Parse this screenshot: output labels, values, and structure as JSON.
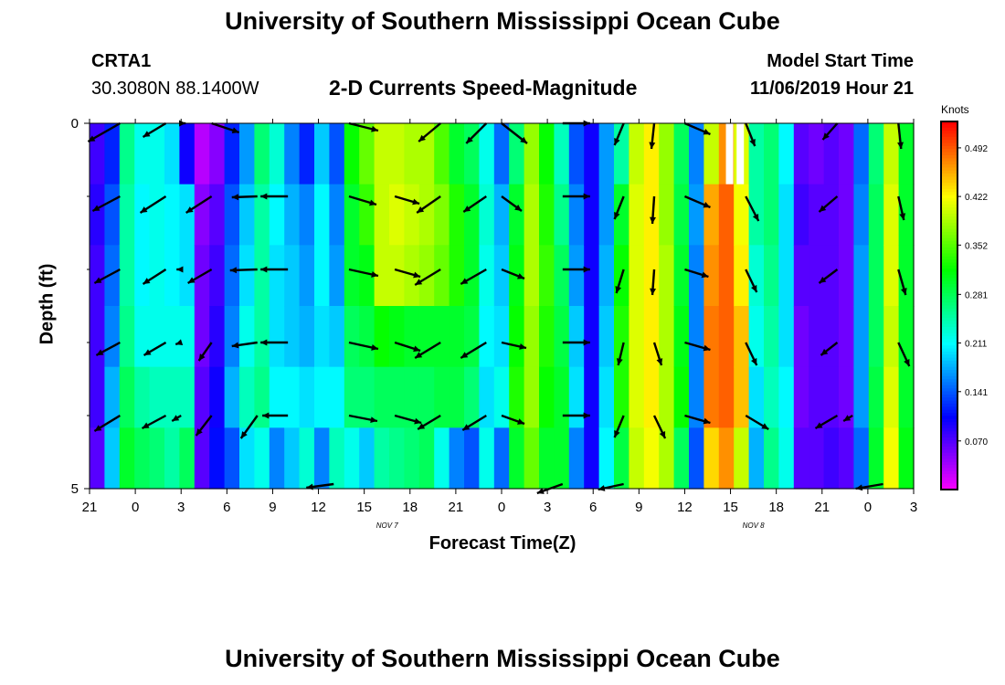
{
  "header": {
    "title": "University of Southern Mississippi Ocean Cube",
    "station_id": "CRTA1",
    "station_coords": "30.3080N 88.1400W",
    "chart_title": "2-D Currents Speed-Magnitude",
    "model_label": "Model Start Time",
    "model_time": "11/06/2019 Hour 21"
  },
  "footer": {
    "title": "University of Southern Mississippi Ocean Cube"
  },
  "chart_data": {
    "type": "heatmap",
    "xlabel": "Forecast Time(Z)",
    "ylabel": "Depth (ft)",
    "units": "Knots",
    "x_ticks": [
      "21",
      "0",
      "3",
      "6",
      "9",
      "12",
      "15",
      "18",
      "21",
      "0",
      "3",
      "6",
      "9",
      "12",
      "15",
      "18",
      "21",
      "0",
      "3"
    ],
    "date_labels": [
      {
        "text": "NOV 7",
        "tick_index": 6.5
      },
      {
        "text": "NOV 8",
        "tick_index": 14.5
      }
    ],
    "y_ticks": [
      "0",
      "5"
    ],
    "ylim": [
      0,
      5
    ],
    "n_hours": 54,
    "colorbar_ticks": [
      "0.492",
      "0.422",
      "0.352",
      "0.281",
      "0.211",
      "0.141",
      "0.070"
    ],
    "colorbar_range": [
      0.0,
      0.53
    ],
    "columns": [
      [
        0.08,
        0.09,
        0.08,
        0.08,
        0.08,
        0.07
      ],
      [
        0.12,
        0.14,
        0.15,
        0.16,
        0.18,
        0.19
      ],
      [
        0.26,
        0.25,
        0.25,
        0.26,
        0.28,
        0.3
      ],
      [
        0.22,
        0.21,
        0.21,
        0.22,
        0.25,
        0.28
      ],
      [
        0.22,
        0.22,
        0.22,
        0.22,
        0.24,
        0.27
      ],
      [
        0.2,
        0.21,
        0.21,
        0.22,
        0.24,
        0.25
      ],
      [
        0.1,
        0.2,
        0.2,
        0.22,
        0.24,
        0.28
      ],
      [
        0.03,
        0.05,
        0.06,
        0.06,
        0.07,
        0.07
      ],
      [
        0.05,
        0.07,
        0.08,
        0.09,
        0.1,
        0.11
      ],
      [
        0.12,
        0.14,
        0.15,
        0.16,
        0.18,
        0.14
      ],
      [
        0.17,
        0.19,
        0.2,
        0.22,
        0.24,
        0.2
      ],
      [
        0.27,
        0.25,
        0.25,
        0.25,
        0.26,
        0.22
      ],
      [
        0.23,
        0.21,
        0.2,
        0.2,
        0.21,
        0.16
      ],
      [
        0.16,
        0.18,
        0.19,
        0.19,
        0.21,
        0.19
      ],
      [
        0.12,
        0.16,
        0.17,
        0.18,
        0.2,
        0.23
      ],
      [
        0.19,
        0.21,
        0.21,
        0.2,
        0.21,
        0.16
      ],
      [
        0.14,
        0.16,
        0.17,
        0.19,
        0.21,
        0.24
      ],
      [
        0.32,
        0.3,
        0.3,
        0.28,
        0.27,
        0.22
      ],
      [
        0.36,
        0.34,
        0.31,
        0.29,
        0.27,
        0.19
      ],
      [
        0.4,
        0.4,
        0.4,
        0.32,
        0.28,
        0.25
      ],
      [
        0.4,
        0.41,
        0.4,
        0.31,
        0.28,
        0.26
      ],
      [
        0.39,
        0.4,
        0.39,
        0.3,
        0.28,
        0.27
      ],
      [
        0.39,
        0.39,
        0.38,
        0.3,
        0.28,
        0.28
      ],
      [
        0.35,
        0.37,
        0.36,
        0.3,
        0.29,
        0.22
      ],
      [
        0.3,
        0.33,
        0.33,
        0.3,
        0.29,
        0.16
      ],
      [
        0.28,
        0.3,
        0.3,
        0.29,
        0.27,
        0.14
      ],
      [
        0.22,
        0.23,
        0.22,
        0.21,
        0.2,
        0.22
      ],
      [
        0.15,
        0.18,
        0.19,
        0.2,
        0.22,
        0.15
      ],
      [
        0.27,
        0.3,
        0.31,
        0.32,
        0.33,
        0.3
      ],
      [
        0.38,
        0.39,
        0.39,
        0.38,
        0.38,
        0.36
      ],
      [
        0.32,
        0.33,
        0.34,
        0.33,
        0.32,
        0.3
      ],
      [
        0.24,
        0.26,
        0.28,
        0.29,
        0.3,
        0.3
      ],
      [
        0.14,
        0.16,
        0.17,
        0.19,
        0.2,
        0.16
      ],
      [
        0.1,
        0.1,
        0.1,
        0.1,
        0.1,
        0.1
      ],
      [
        0.17,
        0.17,
        0.18,
        0.19,
        0.2,
        0.21
      ],
      [
        0.25,
        0.3,
        0.32,
        0.33,
        0.33,
        0.29
      ],
      [
        0.4,
        0.41,
        0.41,
        0.41,
        0.41,
        0.4
      ],
      [
        0.43,
        0.43,
        0.43,
        0.43,
        0.43,
        0.42
      ],
      [
        0.38,
        0.38,
        0.39,
        0.39,
        0.39,
        0.39
      ],
      [
        0.28,
        0.29,
        0.3,
        0.31,
        0.32,
        0.28
      ],
      [
        0.16,
        0.17,
        0.16,
        0.16,
        0.16,
        0.14
      ],
      [
        0.4,
        0.46,
        0.47,
        0.48,
        0.48,
        0.44
      ],
      [
        0.47,
        0.49,
        0.49,
        0.49,
        0.49,
        0.47
      ],
      [
        0.41,
        0.42,
        0.43,
        0.45,
        0.45,
        0.4
      ],
      [
        0.25,
        0.25,
        0.23,
        0.22,
        0.2,
        0.18
      ],
      [
        0.27,
        0.27,
        0.26,
        0.25,
        0.24,
        0.26
      ],
      [
        0.21,
        0.2,
        0.2,
        0.2,
        0.21,
        0.22
      ],
      [
        0.07,
        0.08,
        0.07,
        0.06,
        0.06,
        0.07
      ],
      [
        0.06,
        0.07,
        0.07,
        0.07,
        0.07,
        0.07
      ],
      [
        0.07,
        0.07,
        0.07,
        0.07,
        0.07,
        0.08
      ],
      [
        0.06,
        0.06,
        0.06,
        0.06,
        0.06,
        0.07
      ],
      [
        0.15,
        0.16,
        0.17,
        0.17,
        0.17,
        0.15
      ],
      [
        0.27,
        0.28,
        0.28,
        0.28,
        0.29,
        0.3
      ],
      [
        0.4,
        0.41,
        0.41,
        0.4,
        0.41,
        0.42
      ],
      [
        0.3,
        0.3,
        0.3,
        0.3,
        0.3,
        0.31
      ]
    ],
    "no_data_cells": [
      [
        1,
        0
      ],
      [
        2,
        0
      ]
    ],
    "vectors": [
      {
        "h": 2,
        "d": [
          [
            -35,
            -20
          ],
          [
            -30,
            -16
          ],
          [
            -28,
            -15
          ],
          [
            -26,
            -14
          ],
          [
            -28,
            -17
          ]
        ]
      },
      {
        "h": 5,
        "d": [
          [
            -25,
            -15
          ],
          [
            -28,
            -18
          ],
          [
            -25,
            -16
          ],
          [
            -24,
            -14
          ],
          [
            -26,
            -14
          ]
        ]
      },
      {
        "h": 6,
        "d": [
          [
            5,
            0
          ],
          [
            0,
            0
          ],
          [
            -5,
            0
          ],
          [
            -6,
            -2
          ],
          [
            -10,
            -6
          ]
        ]
      },
      {
        "h": 8,
        "d": [
          [
            30,
            -10
          ],
          [
            -28,
            -18
          ],
          [
            -26,
            -15
          ],
          [
            -14,
            -20
          ],
          [
            -17,
            -22
          ]
        ]
      },
      {
        "h": 11,
        "d": [
          [
            0,
            0
          ],
          [
            -28,
            -1
          ],
          [
            -30,
            -1
          ],
          [
            -28,
            -4
          ],
          [
            -18,
            -25
          ]
        ]
      },
      {
        "h": 13,
        "d": [
          [
            0,
            0
          ],
          [
            -30,
            0
          ],
          [
            -30,
            0
          ],
          [
            -30,
            0
          ],
          [
            -28,
            0
          ]
        ]
      },
      {
        "h": 17,
        "d": [
          [
            32,
            -8
          ],
          [
            30,
            -9
          ],
          [
            32,
            -7
          ],
          [
            32,
            -7
          ],
          [
            31,
            -6
          ]
        ]
      },
      {
        "h": 20,
        "d": [
          [
            0,
            0
          ],
          [
            27,
            -8
          ],
          [
            28,
            -8
          ],
          [
            28,
            -9
          ],
          [
            29,
            -8
          ]
        ]
      },
      {
        "h": 23,
        "d": [
          [
            -24,
            -20
          ],
          [
            -26,
            -18
          ],
          [
            -28,
            -17
          ],
          [
            -28,
            -17
          ],
          [
            -25,
            -15
          ]
        ]
      },
      {
        "h": 26,
        "d": [
          [
            -22,
            -22
          ],
          [
            -25,
            -17
          ],
          [
            -28,
            -16
          ],
          [
            -28,
            -17
          ],
          [
            -26,
            -16
          ]
        ]
      },
      {
        "h": 27,
        "d": [
          [
            28,
            -22
          ],
          [
            22,
            -16
          ],
          [
            25,
            -10
          ],
          [
            27,
            -6
          ],
          [
            25,
            -9
          ]
        ]
      },
      {
        "h": 31,
        "d": [
          [
            30,
            0
          ],
          [
            30,
            0
          ],
          [
            30,
            0
          ],
          [
            30,
            0
          ],
          [
            30,
            0
          ]
        ]
      },
      {
        "h": 35,
        "d": [
          [
            -10,
            -24
          ],
          [
            -10,
            -25
          ],
          [
            -8,
            -26
          ],
          [
            -6,
            -25
          ],
          [
            -10,
            -24
          ]
        ]
      },
      {
        "h": 37,
        "d": [
          [
            -3,
            -28
          ],
          [
            -2,
            -30
          ],
          [
            -2,
            -28
          ],
          [
            8,
            -25
          ],
          [
            12,
            -25
          ]
        ]
      },
      {
        "h": 39,
        "d": [
          [
            28,
            -12
          ],
          [
            28,
            -12
          ],
          [
            26,
            -8
          ],
          [
            28,
            -8
          ],
          [
            28,
            -8
          ]
        ]
      },
      {
        "h": 43,
        "d": [
          [
            10,
            -25
          ],
          [
            14,
            -27
          ],
          [
            12,
            -25
          ],
          [
            12,
            -25
          ],
          [
            25,
            -15
          ]
        ]
      },
      {
        "h": 49,
        "d": [
          [
            -16,
            -18
          ],
          [
            -20,
            -17
          ],
          [
            -20,
            -15
          ],
          [
            -18,
            -14
          ],
          [
            -24,
            -14
          ]
        ]
      },
      {
        "h": 50,
        "d": [
          [
            0,
            0
          ],
          [
            0,
            0
          ],
          [
            0,
            0
          ],
          [
            0,
            0
          ],
          [
            -10,
            -6
          ]
        ]
      },
      {
        "h": 53,
        "d": [
          [
            3,
            -28
          ],
          [
            6,
            -26
          ],
          [
            8,
            -28
          ],
          [
            12,
            -26
          ],
          [
            0,
            0
          ]
        ]
      }
    ],
    "bottom_vectors": [
      {
        "h": 16,
        "d": [
          -30,
          -4
        ]
      },
      {
        "h": 31,
        "d": [
          -28,
          -10
        ]
      },
      {
        "h": 35,
        "d": [
          -28,
          -6
        ]
      },
      {
        "h": 52,
        "d": [
          -30,
          -5
        ]
      }
    ]
  }
}
